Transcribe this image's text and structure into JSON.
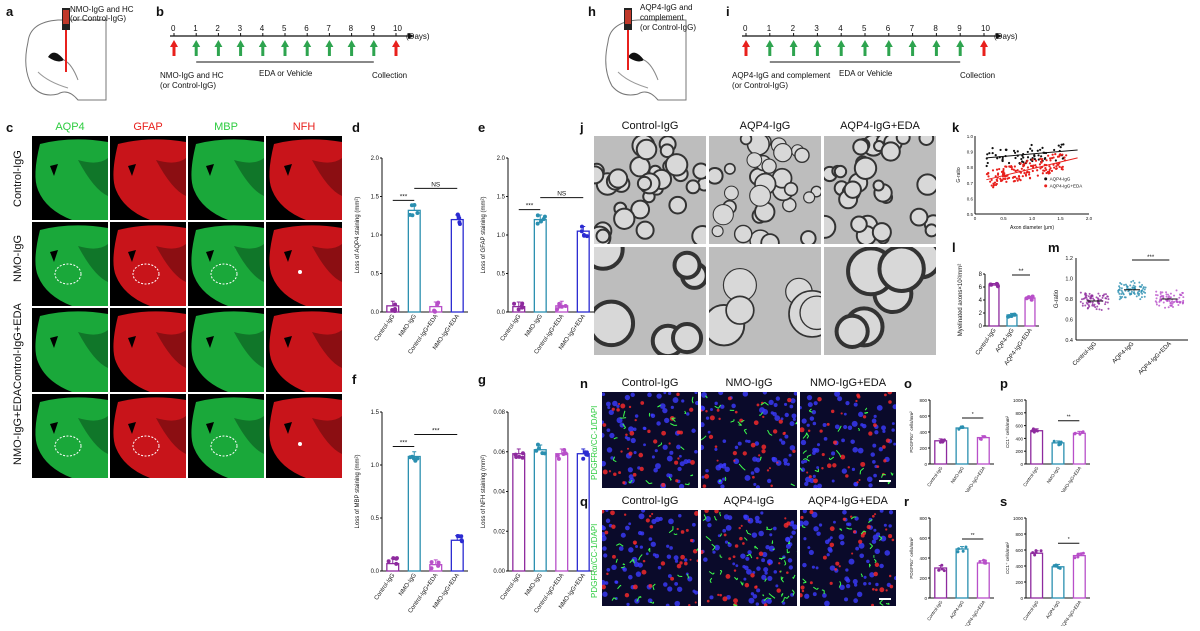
{
  "panel_letters": [
    "a",
    "b",
    "c",
    "d",
    "e",
    "f",
    "g",
    "h",
    "i",
    "j",
    "k",
    "l",
    "m",
    "n",
    "o",
    "p",
    "q",
    "r",
    "s"
  ],
  "panel_a": {
    "inject_label": "NMO-IgG and HC\n(or Control-IgG)"
  },
  "panel_b": {
    "days": [
      "0",
      "1",
      "2",
      "3",
      "4",
      "5",
      "6",
      "7",
      "8",
      "9",
      "10"
    ],
    "days_unit": "(Days)",
    "start_label": "NMO-IgG and HC\n(or Control-IgG)",
    "middle_label": "EDA or Vehicle",
    "end_label": "Collection"
  },
  "panel_h": {
    "inject_label": "AQP4-IgG and\ncomplement\n(or Control-IgG)"
  },
  "panel_i": {
    "days": [
      "0",
      "1",
      "2",
      "3",
      "4",
      "5",
      "6",
      "7",
      "8",
      "9",
      "10"
    ],
    "days_unit": "(Days)",
    "start_label": "AQP4-IgG and complement\n(or Control-IgG)",
    "middle_label": "EDA or Vehicle",
    "end_label": "Collection"
  },
  "panel_c": {
    "columns": [
      {
        "label": "AQP4",
        "color": "#2ecc40"
      },
      {
        "label": "GFAP",
        "color": "#e8201c"
      },
      {
        "label": "MBP",
        "color": "#2ecc40"
      },
      {
        "label": "NFH",
        "color": "#e8201c"
      }
    ],
    "rows": [
      "Control-IgG",
      "NMO-IgG",
      "Control-IgG+EDA",
      "NMO-IgG+EDA"
    ]
  },
  "panel_j": {
    "columns": [
      "Control-IgG",
      "AQP4-IgG",
      "AQP4-IgG+EDA"
    ]
  },
  "panel_n": {
    "columns": [
      "Control-IgG",
      "NMO-IgG",
      "NMO-IgG+EDA"
    ],
    "stain_label": "PDGFRα/CC-1/DAPI"
  },
  "panel_q": {
    "columns": [
      "Control-IgG",
      "AQP4-IgG",
      "AQP4-IgG+EDA"
    ],
    "stain_label": "PDGFRα/CC-1/DAPI"
  },
  "chart_data": [
    {
      "panel": "d",
      "type": "bar",
      "categories": [
        "Control-IgG",
        "NMO-IgG",
        "Control-IgG+EDA",
        "NMO-IgG+EDA"
      ],
      "values": [
        0.08,
        1.32,
        0.07,
        1.2
      ],
      "ylabel": "Loss of AQP4 staining (mm²)",
      "ylim": [
        0,
        2.0
      ],
      "yticks": [
        "0.0",
        "0.5",
        "1.0",
        "1.5",
        "2.0"
      ],
      "colors": [
        "#8e2a9e",
        "#2a8fb0",
        "#b84fc9",
        "#2b2bd1"
      ],
      "sig": [
        {
          "label": "***",
          "from": 0,
          "to": 1
        },
        {
          "label": "NS",
          "from": 1,
          "to": 3
        }
      ]
    },
    {
      "panel": "e",
      "type": "bar",
      "categories": [
        "Control-IgG",
        "NMO-IgG",
        "Control-IgG+EDA",
        "NMO-IgG+EDA"
      ],
      "values": [
        0.07,
        1.2,
        0.08,
        1.05
      ],
      "ylabel": "Loss of GFAP staining (mm²)",
      "ylim": [
        0,
        2.0
      ],
      "yticks": [
        "0.0",
        "0.5",
        "1.0",
        "1.5",
        "2.0"
      ],
      "colors": [
        "#8e2a9e",
        "#2a8fb0",
        "#b84fc9",
        "#2b2bd1"
      ],
      "sig": [
        {
          "label": "***",
          "from": 0,
          "to": 1
        },
        {
          "label": "NS",
          "from": 1,
          "to": 3
        }
      ]
    },
    {
      "panel": "f",
      "type": "bar",
      "categories": [
        "Control-IgG",
        "NMO-IgG",
        "Control-IgG+EDA",
        "NMO-IgG+EDA"
      ],
      "values": [
        0.07,
        1.08,
        0.06,
        0.29
      ],
      "ylabel": "Loss of MBP staining (mm²)",
      "ylim": [
        0,
        1.5
      ],
      "yticks": [
        "0.0",
        "0.5",
        "1.0",
        "1.5"
      ],
      "colors": [
        "#8e2a9e",
        "#2a8fb0",
        "#b84fc9",
        "#2b2bd1"
      ],
      "sig": [
        {
          "label": "***",
          "from": 0,
          "to": 1
        },
        {
          "label": "***",
          "from": 1,
          "to": 3
        }
      ]
    },
    {
      "panel": "g",
      "type": "bar",
      "categories": [
        "Control-IgG",
        "NMO-IgG",
        "Control-IgG+EDA",
        "NMO-IgG+EDA"
      ],
      "values": [
        0.059,
        0.061,
        0.059,
        0.059
      ],
      "ylabel": "Loss of NFH staining (mm²)",
      "ylim": [
        0,
        0.08
      ],
      "yticks": [
        "0.00",
        "0.02",
        "0.04",
        "0.06",
        "0.08"
      ],
      "colors": [
        "#8e2a9e",
        "#2a8fb0",
        "#b84fc9",
        "#2b2bd1"
      ],
      "sig": []
    },
    {
      "panel": "l",
      "type": "bar",
      "categories": [
        "Control-IgG",
        "AQP4-IgG",
        "AQP4-IgG+EDA"
      ],
      "values": [
        6.3,
        1.7,
        4.3
      ],
      "ylabel": "Myelinated axons×10²/mm²",
      "ylim": [
        0,
        8
      ],
      "yticks": [
        "0",
        "2",
        "4",
        "6",
        "8"
      ],
      "colors": [
        "#8e2a9e",
        "#2a8fb0",
        "#b84fc9"
      ],
      "sig": [
        {
          "label": "**",
          "from": 1,
          "to": 2
        }
      ]
    },
    {
      "panel": "o",
      "type": "bar",
      "categories": [
        "Control-IgG",
        "NMO-IgG",
        "NMO-IgG+EDA"
      ],
      "values": [
        290,
        450,
        330
      ],
      "ylabel": "PDGFRα⁺ cells/mm²",
      "ylim": [
        0,
        800
      ],
      "yticks": [
        "0",
        "200",
        "400",
        "600",
        "800"
      ],
      "colors": [
        "#8e2a9e",
        "#2a8fb0",
        "#b84fc9"
      ],
      "sig": [
        {
          "label": "*",
          "from": 1,
          "to": 2
        }
      ]
    },
    {
      "panel": "p",
      "type": "bar",
      "categories": [
        "Control-IgG",
        "NMO-IgG",
        "NMO-IgG+EDA"
      ],
      "values": [
        520,
        330,
        480
      ],
      "ylabel": "CC1⁺ cells/mm²",
      "ylim": [
        0,
        1000
      ],
      "yticks": [
        "0",
        "200",
        "400",
        "600",
        "800",
        "1000"
      ],
      "colors": [
        "#8e2a9e",
        "#2a8fb0",
        "#b84fc9"
      ],
      "sig": [
        {
          "label": "**",
          "from": 1,
          "to": 2
        }
      ]
    },
    {
      "panel": "r",
      "type": "bar",
      "categories": [
        "Control-IgG",
        "AQP4-IgG",
        "AQP4-IgG+EDA"
      ],
      "values": [
        300,
        490,
        350
      ],
      "ylabel": "PDGFRα⁺ cells/mm²",
      "ylim": [
        0,
        800
      ],
      "yticks": [
        "0",
        "200",
        "400",
        "600",
        "800"
      ],
      "colors": [
        "#8e2a9e",
        "#2a8fb0",
        "#b84fc9"
      ],
      "sig": [
        {
          "label": "**",
          "from": 1,
          "to": 2
        }
      ]
    },
    {
      "panel": "s",
      "type": "bar",
      "categories": [
        "Control-IgG",
        "AQP4-IgG",
        "AQP4-IgG+EDA"
      ],
      "values": [
        560,
        390,
        530
      ],
      "ylabel": "CC1⁺ cells/mm²",
      "ylim": [
        0,
        1000
      ],
      "yticks": [
        "0",
        "200",
        "400",
        "600",
        "800",
        "1000"
      ],
      "colors": [
        "#8e2a9e",
        "#2a8fb0",
        "#b84fc9"
      ],
      "sig": [
        {
          "label": "*",
          "from": 1,
          "to": 2
        }
      ]
    },
    {
      "panel": "m",
      "type": "scatter",
      "categories": [
        "Control-IgG",
        "AQP4-IgG",
        "AQP4-IgG+EDA"
      ],
      "means": [
        0.78,
        0.89,
        0.8
      ],
      "ylabel": "G-ratio",
      "ylim": [
        0.4,
        1.2
      ],
      "yticks": [
        "0.4",
        "0.6",
        "0.8",
        "1.0",
        "1.2"
      ],
      "colors": [
        "#8e2a9e",
        "#2a8fb0",
        "#b84fc9"
      ],
      "sig": [
        {
          "label": "***",
          "from": 1,
          "to": 2
        }
      ]
    },
    {
      "panel": "k",
      "type": "scatter",
      "xlabel": "Axon diameter (μm)",
      "ylabel": "G-ratio",
      "xlim": [
        0,
        2.0
      ],
      "ylim": [
        0.5,
        1.0
      ],
      "xticks": [
        "0",
        "0.5",
        "1.0",
        "1.5",
        "2.0"
      ],
      "yticks": [
        "0.5",
        "0.6",
        "0.7",
        "0.8",
        "0.9",
        "1.0"
      ],
      "series": [
        {
          "name": "AQP4-IgG",
          "color": "#111111",
          "fit": [
            [
              0.2,
              0.86
            ],
            [
              1.8,
              0.91
            ]
          ]
        },
        {
          "name": "AQP4-IgG+EDA",
          "color": "#e8201c",
          "fit": [
            [
              0.2,
              0.72
            ],
            [
              1.8,
              0.86
            ]
          ]
        }
      ]
    }
  ]
}
